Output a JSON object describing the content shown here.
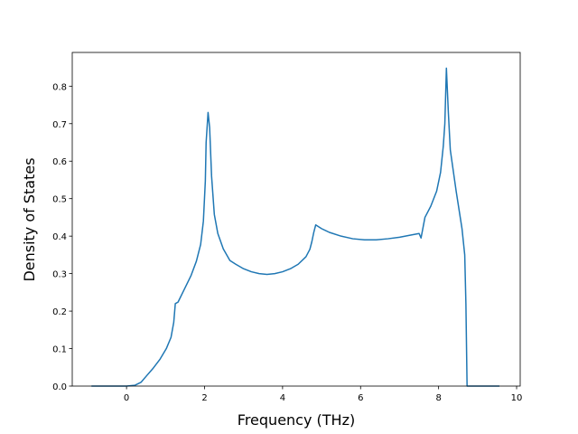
{
  "chart_data": {
    "type": "line",
    "xlabel": "Frequency (THz)",
    "ylabel": "Density of States",
    "x": [
      -0.9,
      0,
      0.21,
      0.37,
      0.51,
      0.67,
      0.86,
      1.02,
      1.14,
      1.21,
      1.25,
      1.32,
      1.48,
      1.65,
      1.79,
      1.9,
      1.97,
      2.02,
      2.04,
      2.09,
      2.13,
      2.18,
      2.25,
      2.34,
      2.48,
      2.65,
      2.8,
      3.0,
      3.2,
      3.4,
      3.6,
      3.8,
      4.0,
      4.2,
      4.4,
      4.6,
      4.7,
      4.75,
      4.8,
      4.85,
      5.0,
      5.2,
      5.5,
      5.8,
      6.1,
      6.4,
      6.7,
      7.0,
      7.3,
      7.5,
      7.55,
      7.65,
      7.8,
      7.95,
      8.05,
      8.12,
      8.16,
      8.2,
      8.25,
      8.3,
      8.45,
      8.6,
      8.67,
      8.7,
      8.73,
      9.56
    ],
    "series": [
      {
        "color": "#1f77b4",
        "values": [
          0,
          0,
          0.002,
          0.01,
          0.027,
          0.046,
          0.072,
          0.1,
          0.13,
          0.17,
          0.22,
          0.224,
          0.258,
          0.294,
          0.333,
          0.378,
          0.44,
          0.547,
          0.65,
          0.73,
          0.69,
          0.56,
          0.458,
          0.407,
          0.366,
          0.335,
          0.325,
          0.313,
          0.305,
          0.3,
          0.298,
          0.3,
          0.305,
          0.313,
          0.325,
          0.345,
          0.365,
          0.385,
          0.41,
          0.43,
          0.42,
          0.41,
          0.4,
          0.393,
          0.39,
          0.39,
          0.393,
          0.397,
          0.403,
          0.407,
          0.395,
          0.45,
          0.48,
          0.52,
          0.57,
          0.64,
          0.7,
          0.848,
          0.73,
          0.63,
          0.52,
          0.42,
          0.35,
          0.22,
          0,
          0
        ]
      }
    ],
    "xlim": [
      -1.392,
      10.092
    ],
    "ylim": [
      0,
      0.89
    ],
    "xticks": [
      0,
      2,
      4,
      6,
      8,
      10
    ],
    "yticks": [
      {
        "value": 0,
        "label": "0.0"
      },
      {
        "value": 0.1,
        "label": "0.1"
      },
      {
        "value": 0.2,
        "label": "0.2"
      },
      {
        "value": 0.3,
        "label": "0.3"
      },
      {
        "value": 0.4,
        "label": "0.4"
      },
      {
        "value": 0.5,
        "label": "0.5"
      },
      {
        "value": 0.6,
        "label": "0.6"
      },
      {
        "value": 0.7,
        "label": "0.7"
      },
      {
        "value": 0.8,
        "label": "0.8"
      }
    ]
  }
}
